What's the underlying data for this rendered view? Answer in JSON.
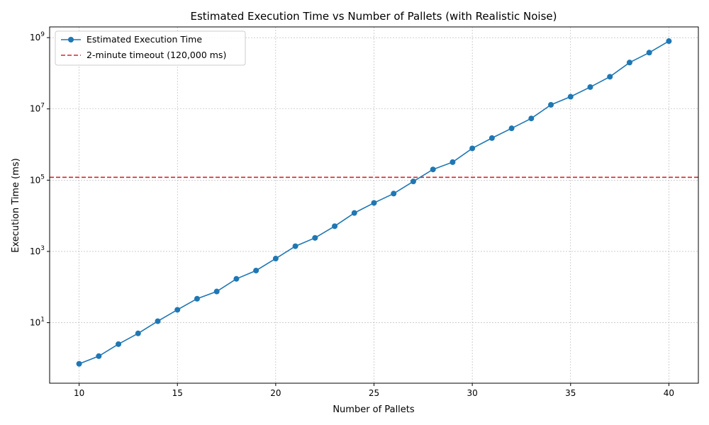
{
  "chart_data": {
    "type": "line",
    "title": "Estimated Execution Time vs Number of Pallets (with Realistic Noise)",
    "xlabel": "Number of Pallets",
    "ylabel": "Execution Time (ms)",
    "xlim": [
      8.5,
      41.5
    ],
    "ylim": [
      0.2,
      2000000000
    ],
    "yscale": "log",
    "grid": true,
    "legend_position": "top-left",
    "x_ticks": [
      10,
      15,
      20,
      25,
      30,
      35,
      40
    ],
    "y_ticks": [
      {
        "value": 10,
        "base": "10",
        "exp": "1"
      },
      {
        "value": 1000,
        "base": "10",
        "exp": "3"
      },
      {
        "value": 100000,
        "base": "10",
        "exp": "5"
      },
      {
        "value": 10000000,
        "base": "10",
        "exp": "7"
      },
      {
        "value": 1000000000,
        "base": "10",
        "exp": "9"
      }
    ],
    "series": [
      {
        "name": "Estimated Execution Time",
        "color": "#1f77b4",
        "marker": "circle",
        "x": [
          10,
          11,
          12,
          13,
          14,
          15,
          16,
          17,
          18,
          19,
          20,
          21,
          22,
          23,
          24,
          25,
          26,
          27,
          28,
          29,
          30,
          31,
          32,
          33,
          34,
          35,
          36,
          37,
          38,
          39,
          40
        ],
        "y": [
          0.7,
          1.15,
          2.5,
          5,
          11,
          23,
          47,
          75,
          170,
          290,
          630,
          1400,
          2400,
          5100,
          12000,
          23000,
          42000,
          92000,
          200000,
          320000,
          780000,
          1520000,
          2850000,
          5400000,
          13000000,
          22000000,
          41000000,
          80000000,
          200000000,
          380000000,
          800000000
        ]
      }
    ],
    "reference_lines": [
      {
        "name": "2-minute timeout (120,000 ms)",
        "y": 120000,
        "color": "#d62728",
        "style": "dashed"
      }
    ]
  }
}
